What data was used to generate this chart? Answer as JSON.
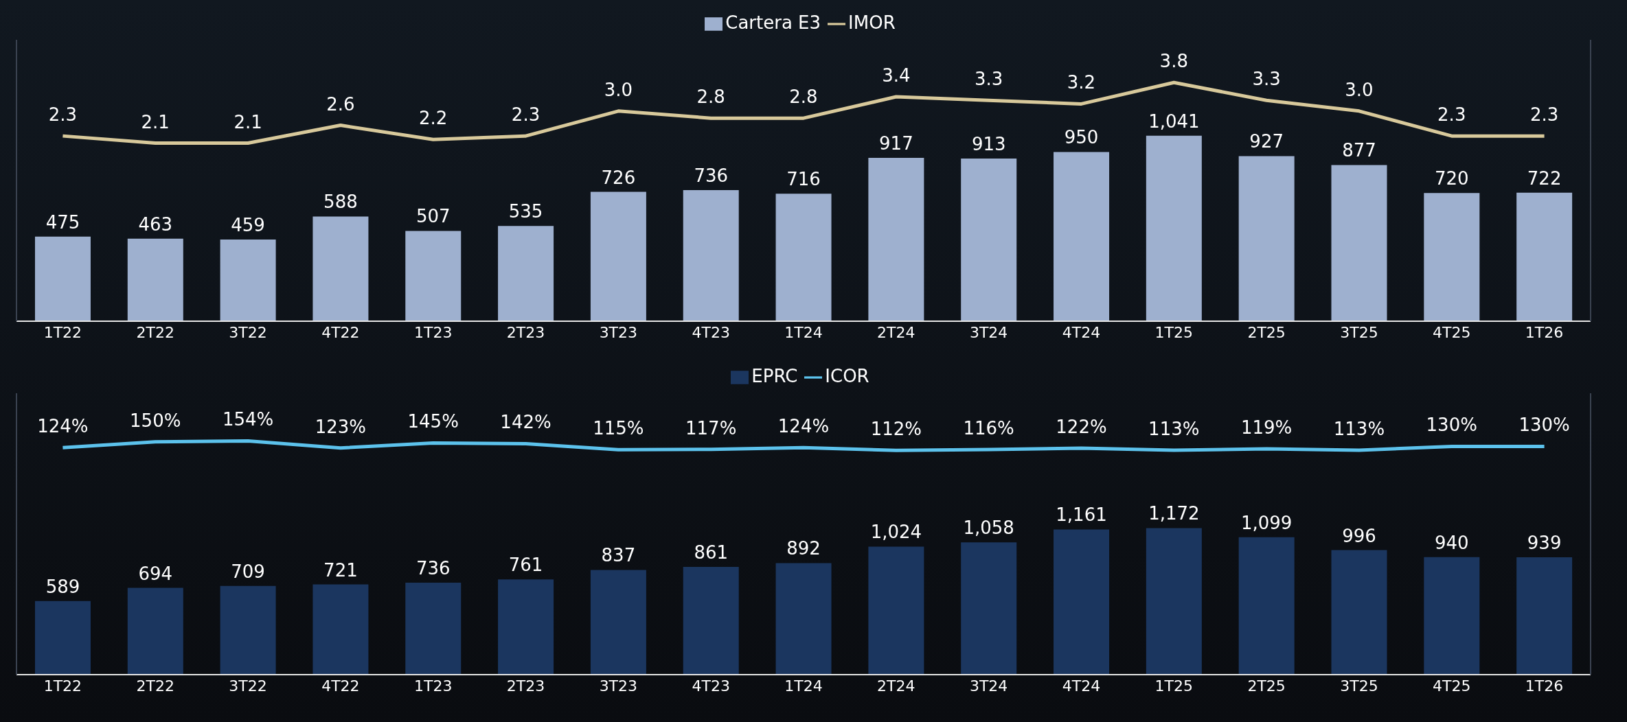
{
  "chart_data": [
    {
      "type": "bar",
      "categories": [
        "1T22",
        "2T22",
        "3T22",
        "4T22",
        "1T23",
        "2T23",
        "3T23",
        "4T23",
        "1T24",
        "2T24",
        "3T24",
        "4T24",
        "1T25",
        "2T25",
        "3T25",
        "4T25",
        "1T26"
      ],
      "series": [
        {
          "name": "Cartera E3",
          "color": "#9eb0cf",
          "values": [
            475,
            463,
            459,
            588,
            507,
            535,
            726,
            736,
            716,
            917,
            913,
            950,
            1041,
            927,
            877,
            720,
            722
          ],
          "value_labels": [
            "475",
            "463",
            "459",
            "588",
            "507",
            "535",
            "726",
            "736",
            "716",
            "917",
            "913",
            "950",
            "1,041",
            "927",
            "877",
            "720",
            "722"
          ]
        },
        {
          "name": "IMOR",
          "type": "line",
          "axis": "y2",
          "color": "#d8c99b",
          "values": [
            2.3,
            2.1,
            2.1,
            2.6,
            2.2,
            2.3,
            3.0,
            2.8,
            2.8,
            3.4,
            3.3,
            3.2,
            3.8,
            3.3,
            3.0,
            2.3,
            2.3
          ],
          "value_labels": [
            "2.3",
            "2.1",
            "2.1",
            "2.6",
            "2.2",
            "2.3",
            "3.0",
            "2.8",
            "2.8",
            "3.4",
            "3.3",
            "3.2",
            "3.8",
            "3.3",
            "3.0",
            "2.3",
            "2.3"
          ]
        }
      ],
      "ylim": [
        0,
        1580
      ],
      "y2lim": [
        -2.9,
        5
      ],
      "legend": "top",
      "tick_labels": "x"
    },
    {
      "type": "bar",
      "categories": [
        "1T22",
        "2T22",
        "3T22",
        "4T22",
        "1T23",
        "2T23",
        "3T23",
        "4T23",
        "1T24",
        "2T24",
        "3T24",
        "4T24",
        "1T25",
        "2T25",
        "3T25",
        "4T25",
        "1T26"
      ],
      "series": [
        {
          "name": "EPRC",
          "color": "#1b365f",
          "values": [
            589,
            694,
            709,
            721,
            736,
            761,
            837,
            861,
            892,
            1024,
            1058,
            1161,
            1172,
            1099,
            996,
            940,
            939
          ],
          "value_labels": [
            "589",
            "694",
            "709",
            "721",
            "736",
            "761",
            "837",
            "861",
            "892",
            "1,024",
            "1,058",
            "1,161",
            "1,172",
            "1,099",
            "996",
            "940",
            "939"
          ]
        },
        {
          "name": "ICOR",
          "type": "line",
          "axis": "y2",
          "color": "#5cc2ec",
          "values": [
            124,
            150,
            154,
            123,
            145,
            142,
            115,
            117,
            124,
            112,
            116,
            122,
            113,
            119,
            113,
            130,
            130
          ],
          "value_labels": [
            "124%",
            "150%",
            "154%",
            "123%",
            "145%",
            "142%",
            "115%",
            "117%",
            "124%",
            "112%",
            "116%",
            "122%",
            "113%",
            "119%",
            "113%",
            "130%",
            "130%"
          ]
        }
      ],
      "ylim": [
        0,
        2250
      ],
      "y2lim": [
        -880,
        365
      ],
      "legend": "top",
      "tick_labels": "x"
    }
  ]
}
